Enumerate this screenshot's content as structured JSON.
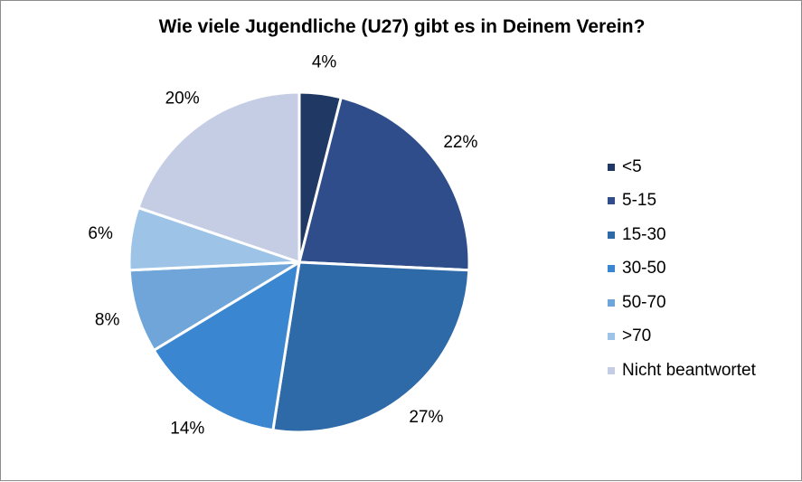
{
  "chart_data": {
    "type": "pie",
    "title": "Wie viele Jugendliche (U27) gibt es in Deinem Verein?",
    "categories": [
      "<5",
      "5-15",
      "15-30",
      "30-50",
      "50-70",
      ">70",
      "Nicht beantwortet"
    ],
    "values": [
      4,
      22,
      27,
      14,
      8,
      6,
      20
    ],
    "labels": [
      "4%",
      "22%",
      "27%",
      "14%",
      "8%",
      "6%",
      "20%"
    ],
    "colors": [
      "#1f3864",
      "#2e4d8a",
      "#2e6aa8",
      "#3a86d0",
      "#6fa5d9",
      "#9dc3e6",
      "#c5cde5"
    ],
    "legend_position": "right"
  }
}
